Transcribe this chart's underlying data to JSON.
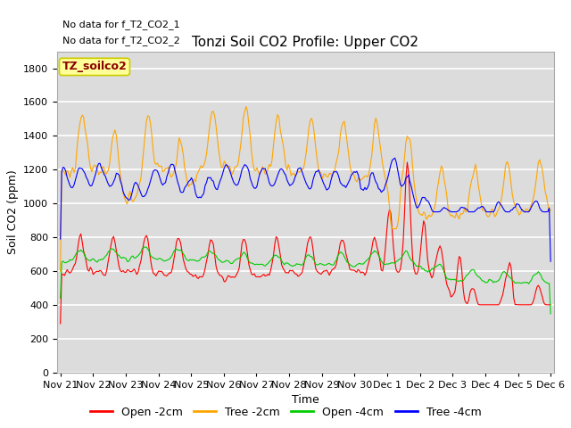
{
  "title": "Tonzi Soil CO2 Profile: Upper CO2",
  "xlabel": "Time",
  "ylabel": "Soil CO2 (ppm)",
  "ylim": [
    0,
    1900
  ],
  "yticks": [
    0,
    200,
    400,
    600,
    800,
    1000,
    1200,
    1400,
    1600,
    1800
  ],
  "nodata_text": [
    "No data for f_T2_CO2_1",
    "No data for f_T2_CO2_2"
  ],
  "legend_box_text": "TZ_soilco2",
  "legend_box_color": "#FFFF99",
  "legend_box_border_color": "#CCCC00",
  "legend_box_text_color": "#8B0000",
  "series_labels": [
    "Open -2cm",
    "Tree -2cm",
    "Open -4cm",
    "Tree -4cm"
  ],
  "series_colors": [
    "#FF0000",
    "#FFA500",
    "#00CC00",
    "#0000FF"
  ],
  "plot_bg_color": "#DCDCDC",
  "grid_color": "#FFFFFF",
  "title_fontsize": 11,
  "axis_fontsize": 9,
  "tick_fontsize": 8,
  "nodata_fontsize": 8,
  "legend_fontsize": 9,
  "xtick_labels": [
    "Nov 21",
    "Nov 22",
    "Nov 23",
    "Nov 24",
    "Nov 25",
    "Nov 26",
    "Nov 27",
    "Nov 28",
    "Nov 29",
    "Nov 30",
    "Dec 1",
    "Dec 2",
    "Dec 3",
    "Dec 4",
    "Dec 5",
    "Dec 6"
  ]
}
